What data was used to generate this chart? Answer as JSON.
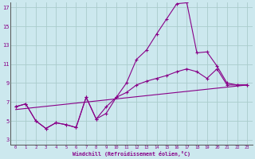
{
  "xlabel": "Windchill (Refroidissement éolien,°C)",
  "bg_color": "#cce8ee",
  "grid_color": "#aacccc",
  "line_color": "#880088",
  "xlim": [
    -0.5,
    23.5
  ],
  "ylim": [
    2.5,
    17.5
  ],
  "xticks": [
    0,
    1,
    2,
    3,
    4,
    5,
    6,
    7,
    8,
    9,
    10,
    11,
    12,
    13,
    14,
    15,
    16,
    17,
    18,
    19,
    20,
    21,
    22,
    23
  ],
  "yticks": [
    3,
    5,
    7,
    9,
    11,
    13,
    15,
    17
  ],
  "line1_x": [
    0,
    1,
    2,
    3,
    4,
    5,
    6,
    7,
    8,
    9,
    10,
    11,
    12,
    13,
    14,
    15,
    16,
    17,
    18,
    19,
    20,
    21,
    22,
    23
  ],
  "line1_y": [
    6.5,
    6.8,
    5.0,
    4.2,
    4.8,
    4.6,
    4.3,
    7.5,
    5.2,
    5.8,
    7.5,
    9.0,
    11.5,
    12.5,
    14.2,
    15.8,
    17.4,
    17.5,
    12.2,
    12.3,
    10.8,
    9.0,
    8.8,
    8.8
  ],
  "line2_x": [
    0,
    1,
    2,
    3,
    4,
    5,
    6,
    7,
    8,
    9,
    10,
    11,
    12,
    13,
    14,
    15,
    16,
    17,
    18,
    19,
    20,
    21,
    22,
    23
  ],
  "line2_y": [
    6.5,
    6.8,
    5.0,
    4.2,
    4.8,
    4.6,
    4.3,
    7.5,
    5.2,
    6.5,
    7.5,
    8.0,
    8.8,
    9.2,
    9.5,
    9.8,
    10.2,
    10.5,
    10.2,
    9.5,
    10.5,
    8.8,
    8.8,
    8.8
  ],
  "line3_x": [
    0,
    23
  ],
  "line3_y": [
    6.2,
    8.8
  ]
}
